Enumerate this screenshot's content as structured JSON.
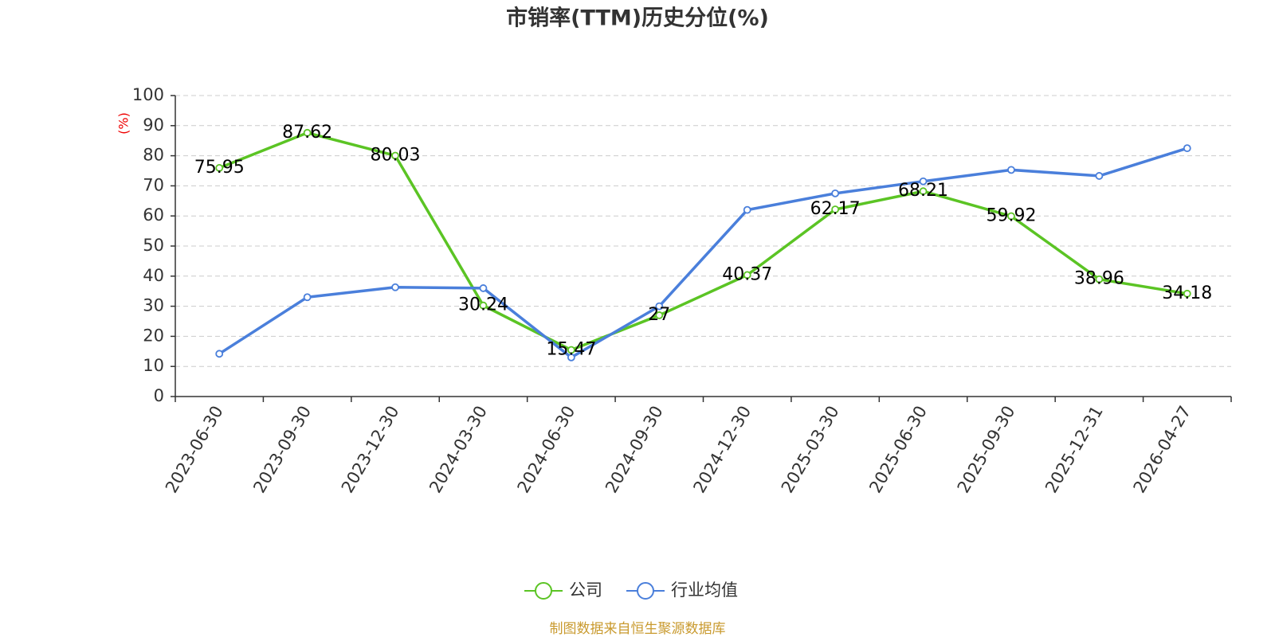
{
  "chart_data": {
    "type": "line",
    "title": "市销率(TTM)历史分位(%)",
    "y_label": "(%)",
    "source": "制图数据来自恒生聚源数据库",
    "categories": [
      "2023-06-30",
      "2023-09-30",
      "2023-12-30",
      "2024-03-30",
      "2024-06-30",
      "2024-09-30",
      "2024-12-30",
      "2025-03-30",
      "2025-06-30",
      "2025-09-30",
      "2025-12-31",
      "2026-04-27"
    ],
    "series": [
      {
        "name": "公司",
        "color": "#5bc424",
        "labels": true,
        "values": [
          75.95,
          87.62,
          80.03,
          30.24,
          15.47,
          27,
          40.37,
          62.17,
          68.21,
          59.92,
          38.96,
          34.18
        ]
      },
      {
        "name": "行业均值",
        "color": "#4a7fdb",
        "labels": false,
        "values": [
          14.2,
          33,
          36.3,
          36,
          13,
          30,
          62,
          67.5,
          71.5,
          75.3,
          73.3,
          82.5
        ]
      }
    ],
    "ylim": [
      0,
      100
    ],
    "yticks": [
      0,
      10,
      20,
      30,
      40,
      50,
      60,
      70,
      80,
      90,
      100
    ],
    "grid": true
  }
}
